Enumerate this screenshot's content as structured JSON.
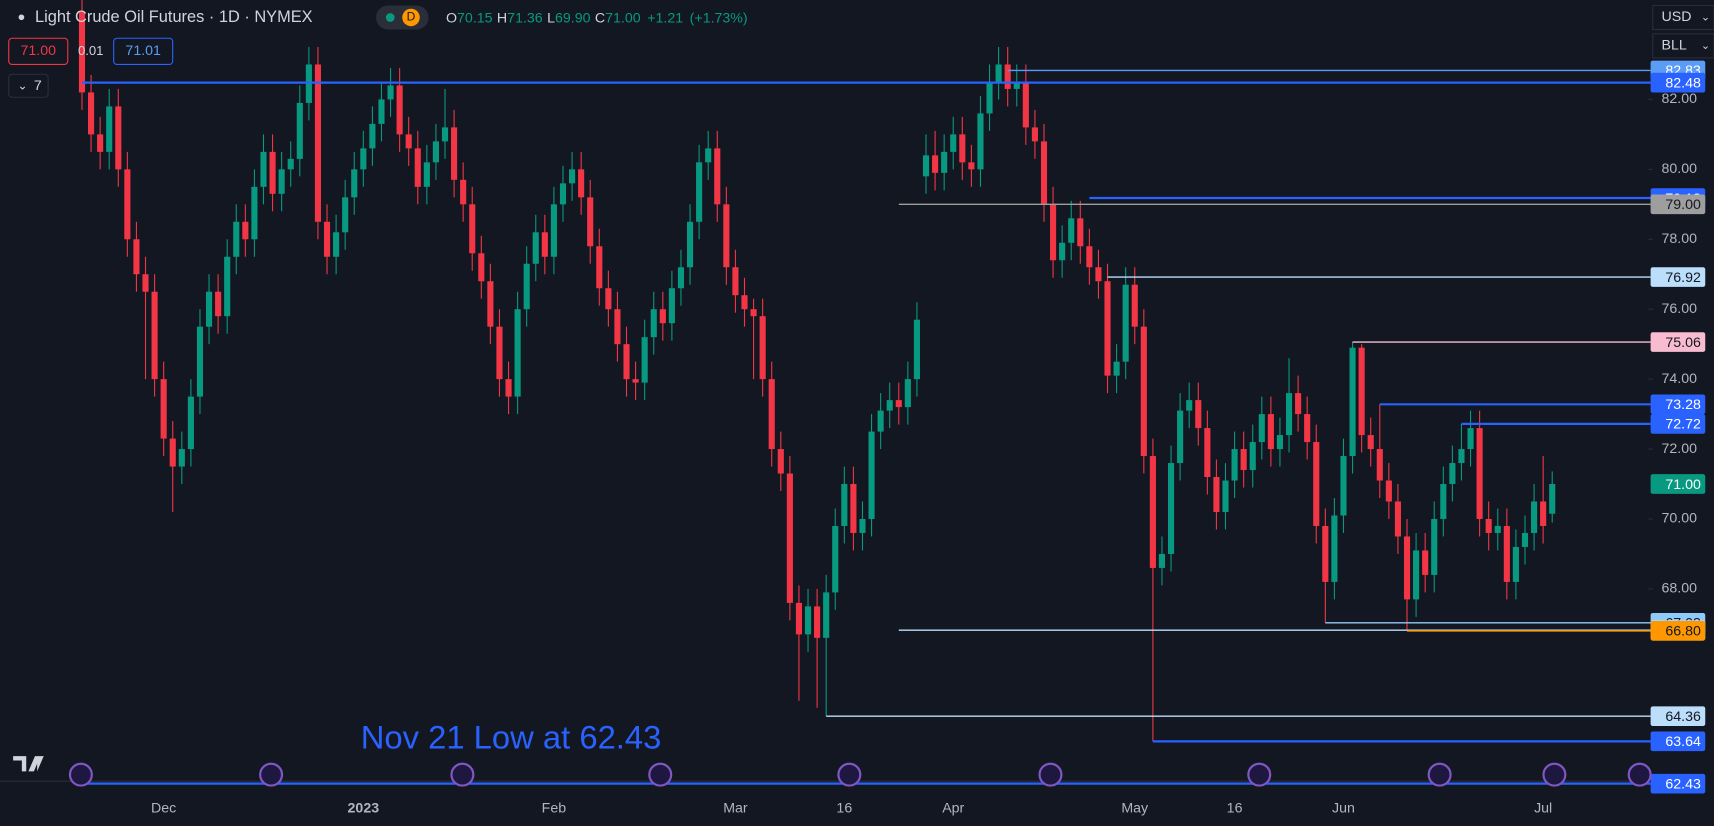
{
  "header": {
    "title": "Light Crude Oil Futures · 1D · NYMEX",
    "badge": "D",
    "open_key": "O",
    "open": "70.15",
    "high_key": "H",
    "high": "71.36",
    "low_key": "L",
    "low": "69.90",
    "close_key": "C",
    "close": "71.00",
    "change": "+1.21",
    "change_pct": "(+1.73%)"
  },
  "toolbar": {
    "sell": "71.00",
    "spread": "0.01",
    "buy": "71.01",
    "count": "7",
    "currency": "USD",
    "unit": "BLL"
  },
  "chart_data": {
    "type": "candlestick",
    "up_color": "#089981",
    "down_color": "#f23645",
    "annotation": "Nov 21 Low at 62.43",
    "ylim": [
      62,
      85
    ],
    "yticks": [
      {
        "value": 68,
        "label": "68.00"
      },
      {
        "value": 70,
        "label": "70.00"
      },
      {
        "value": 72,
        "label": "72.00"
      },
      {
        "value": 74,
        "label": "74.00"
      },
      {
        "value": 76,
        "label": "76.00"
      },
      {
        "value": 78,
        "label": "78.00"
      },
      {
        "value": 80,
        "label": "80.00"
      },
      {
        "value": 82,
        "label": "82.00"
      }
    ],
    "x_labels": [
      {
        "index": 9,
        "label": "Dec"
      },
      {
        "index": 31,
        "label": "2023"
      },
      {
        "index": 52,
        "label": "Feb"
      },
      {
        "index": 72,
        "label": "Mar"
      },
      {
        "index": 84,
        "label": "16"
      },
      {
        "index": 96,
        "label": "Apr"
      },
      {
        "index": 116,
        "label": "May"
      },
      {
        "index": 127,
        "label": "16"
      },
      {
        "index": 139,
        "label": "Jun"
      },
      {
        "index": 161,
        "label": "Jul"
      }
    ],
    "candles": {
      "open": [
        84.5,
        82.2,
        81.0,
        80.5,
        81.8,
        80.0,
        78.0,
        77.0,
        76.5,
        74.0,
        72.3,
        71.5,
        72.0,
        73.5,
        75.5,
        76.5,
        75.8,
        77.5,
        78.5,
        78.0,
        79.5,
        80.5,
        79.3,
        80.0,
        80.3,
        81.9,
        83.0,
        78.5,
        77.5,
        78.2,
        79.2,
        80.0,
        80.6,
        81.3,
        82.0,
        82.4,
        81.0,
        80.6,
        79.5,
        80.2,
        80.8,
        81.2,
        79.7,
        79.0,
        77.6,
        76.8,
        75.5,
        74.0,
        73.5,
        76.0,
        77.3,
        78.2,
        77.5,
        79.0,
        79.6,
        80.0,
        79.2,
        77.8,
        76.6,
        76.0,
        75.0,
        74.0,
        73.9,
        75.2,
        76.0,
        75.6,
        76.6,
        77.2,
        78.5,
        80.2,
        80.6,
        79.0,
        77.2,
        76.4,
        76.0,
        75.8,
        74.0,
        72.0,
        71.3,
        67.6,
        66.7,
        67.5,
        66.6,
        67.9,
        69.8,
        71.0,
        69.6,
        70.0,
        72.5,
        73.1,
        73.4,
        73.2,
        74.0,
        79.8,
        80.4,
        79.9,
        80.5,
        81.0,
        80.2,
        80.0,
        81.6,
        82.5,
        83.0,
        82.3,
        82.5,
        81.2,
        80.8,
        79.0,
        77.4,
        77.9,
        78.6,
        77.8,
        77.2,
        76.8,
        74.1,
        74.5,
        76.7,
        75.5,
        71.8,
        68.6,
        69.0,
        71.6,
        73.1,
        73.4,
        72.6,
        71.2,
        70.2,
        71.1,
        72.0,
        71.4,
        72.2,
        73.0,
        72.0,
        72.4,
        73.6,
        73.0,
        72.2,
        69.8,
        68.2,
        70.1,
        71.8,
        74.9,
        72.4,
        72.0,
        71.1,
        70.5,
        69.5,
        67.7,
        69.1,
        68.4,
        70.0,
        71.0,
        71.6,
        72.0,
        72.6,
        70.0,
        69.6,
        69.8,
        68.2,
        69.2,
        69.6,
        70.5,
        70.15
      ],
      "high": [
        85.0,
        82.7,
        81.5,
        82.3,
        82.3,
        80.5,
        78.5,
        77.5,
        77.0,
        74.5,
        72.8,
        72.5,
        74.0,
        76.0,
        77.0,
        77.0,
        78.0,
        79.0,
        79.0,
        80.0,
        81.0,
        81.0,
        80.5,
        80.8,
        82.4,
        83.5,
        83.5,
        79.0,
        78.7,
        79.7,
        80.5,
        81.1,
        81.8,
        82.5,
        82.9,
        82.9,
        81.5,
        81.1,
        80.7,
        81.3,
        82.3,
        81.7,
        80.2,
        79.5,
        78.1,
        77.3,
        76.0,
        74.5,
        76.5,
        77.8,
        78.7,
        78.7,
        79.5,
        80.1,
        80.5,
        80.5,
        79.7,
        78.3,
        77.1,
        76.5,
        75.5,
        74.5,
        75.7,
        76.5,
        76.5,
        77.1,
        77.7,
        79.0,
        80.7,
        81.1,
        81.1,
        79.5,
        77.7,
        76.9,
        76.3,
        76.3,
        74.5,
        72.5,
        71.8,
        68.1,
        68.0,
        68.0,
        68.4,
        70.3,
        71.5,
        71.5,
        70.5,
        73.0,
        73.6,
        73.9,
        73.9,
        74.5,
        76.2,
        81.0,
        81.1,
        81.0,
        81.5,
        81.5,
        80.7,
        82.1,
        83.0,
        83.5,
        83.5,
        83.0,
        83.0,
        81.7,
        81.3,
        79.5,
        78.4,
        79.1,
        79.1,
        78.3,
        77.7,
        77.3,
        75.0,
        77.2,
        77.2,
        76.0,
        72.3,
        69.5,
        72.1,
        73.6,
        73.9,
        73.9,
        73.1,
        71.7,
        71.6,
        72.5,
        72.5,
        72.7,
        73.5,
        73.5,
        72.9,
        74.6,
        74.1,
        73.5,
        72.7,
        70.3,
        70.6,
        72.3,
        75.06,
        75.0,
        72.9,
        73.28,
        71.6,
        71.0,
        70.0,
        69.6,
        69.6,
        70.5,
        71.5,
        72.1,
        72.72,
        73.1,
        73.1,
        70.5,
        70.3,
        70.3,
        69.7,
        70.1,
        71.0,
        71.8,
        71.36
      ],
      "low": [
        81.7,
        80.5,
        80.0,
        80.0,
        79.5,
        77.5,
        76.5,
        74.0,
        73.5,
        71.8,
        70.2,
        71.0,
        71.5,
        73.0,
        75.0,
        75.3,
        75.3,
        77.0,
        77.5,
        77.5,
        79.0,
        78.8,
        78.8,
        79.5,
        79.8,
        81.4,
        78.0,
        77.0,
        77.0,
        77.7,
        78.7,
        79.5,
        80.1,
        80.8,
        81.5,
        80.5,
        80.1,
        79.0,
        79.0,
        79.7,
        80.3,
        79.2,
        78.5,
        77.1,
        76.3,
        75.0,
        73.5,
        73.0,
        73.0,
        75.5,
        76.8,
        77.0,
        77.0,
        78.5,
        79.1,
        78.7,
        77.3,
        76.1,
        75.5,
        74.5,
        73.5,
        73.4,
        73.4,
        74.7,
        75.1,
        75.1,
        76.1,
        76.7,
        78.0,
        79.7,
        78.5,
        76.7,
        75.9,
        75.5,
        74.0,
        73.5,
        71.5,
        70.8,
        67.1,
        64.8,
        66.2,
        64.6,
        64.36,
        67.4,
        69.3,
        69.1,
        69.1,
        69.5,
        72.0,
        72.6,
        72.7,
        72.7,
        73.5,
        79.3,
        79.4,
        79.4,
        80.0,
        79.7,
        79.5,
        79.5,
        81.1,
        82.0,
        81.8,
        81.8,
        80.7,
        80.3,
        78.5,
        76.9,
        76.9,
        77.4,
        77.3,
        76.7,
        76.3,
        73.6,
        73.6,
        74.0,
        75.0,
        71.3,
        63.64,
        68.1,
        68.5,
        71.1,
        72.6,
        72.1,
        70.7,
        69.7,
        69.7,
        70.6,
        70.9,
        70.9,
        71.7,
        71.5,
        71.5,
        71.9,
        72.5,
        71.7,
        69.3,
        67.03,
        67.7,
        69.6,
        71.3,
        71.9,
        71.5,
        70.6,
        70.0,
        69.0,
        66.8,
        67.2,
        67.9,
        67.9,
        69.5,
        70.5,
        71.1,
        71.5,
        69.5,
        69.1,
        69.1,
        67.7,
        67.7,
        68.7,
        69.1,
        69.3,
        69.9
      ],
      "close": [
        82.2,
        81.0,
        80.5,
        81.8,
        80.0,
        78.0,
        77.0,
        76.5,
        74.0,
        72.3,
        71.5,
        72.0,
        73.5,
        75.5,
        76.5,
        75.8,
        77.5,
        78.5,
        78.0,
        79.5,
        80.5,
        79.3,
        80.0,
        80.3,
        81.9,
        83.0,
        78.5,
        77.5,
        78.2,
        79.2,
        80.0,
        80.6,
        81.3,
        82.0,
        82.4,
        81.0,
        80.6,
        79.5,
        80.2,
        80.8,
        81.2,
        79.7,
        79.0,
        77.6,
        76.8,
        75.5,
        74.0,
        73.5,
        76.0,
        77.3,
        78.2,
        77.5,
        79.0,
        79.6,
        80.0,
        79.2,
        77.8,
        76.6,
        76.0,
        75.0,
        74.0,
        73.9,
        75.2,
        76.0,
        75.6,
        76.6,
        77.2,
        78.5,
        80.2,
        80.6,
        79.0,
        77.2,
        76.4,
        76.0,
        75.8,
        74.0,
        72.0,
        71.3,
        67.6,
        66.7,
        67.5,
        66.6,
        67.9,
        69.8,
        71.0,
        69.6,
        70.0,
        72.5,
        73.1,
        73.4,
        73.2,
        74.0,
        75.7,
        80.4,
        79.9,
        80.5,
        81.0,
        80.2,
        80.0,
        81.6,
        82.5,
        83.0,
        82.3,
        82.5,
        81.2,
        80.8,
        79.0,
        77.4,
        77.9,
        78.6,
        77.8,
        77.2,
        76.8,
        74.1,
        74.5,
        76.7,
        75.5,
        71.8,
        68.6,
        69.0,
        71.6,
        73.1,
        73.4,
        72.6,
        71.2,
        70.2,
        71.1,
        72.0,
        71.4,
        72.2,
        73.0,
        72.0,
        72.4,
        73.6,
        73.0,
        72.2,
        69.8,
        68.2,
        70.1,
        71.8,
        74.9,
        72.4,
        72.0,
        71.1,
        70.5,
        69.5,
        67.7,
        69.1,
        68.4,
        70.0,
        71.0,
        71.6,
        72.0,
        72.6,
        70.0,
        69.6,
        69.8,
        68.2,
        69.2,
        69.6,
        70.5,
        69.8,
        71.0
      ]
    },
    "levels": [
      {
        "price": 82.83,
        "from": 102,
        "color": "#5b9cf6",
        "text_color": "#ffffff"
      },
      {
        "price": 82.48,
        "from": 0,
        "color": "#2962ff",
        "text_color": "#ffffff"
      },
      {
        "price": 79.18,
        "from": 111,
        "color": "#2962ff",
        "text_color": "#ffffff"
      },
      {
        "price": 79,
        "label": "79.00",
        "from": 90,
        "color": "#9e9e9e",
        "text_color": "#131722"
      },
      {
        "price": 76.92,
        "from": 113,
        "color": "#bbdefb",
        "text_color": "#131722"
      },
      {
        "price": 75.06,
        "from": 140,
        "color": "#f8bbd0",
        "text_color": "#131722"
      },
      {
        "price": 73.28,
        "from": 143,
        "color": "#2962ff",
        "text_color": "#ffffff"
      },
      {
        "price": 72.72,
        "from": 152,
        "color": "#2962ff",
        "text_color": "#ffffff"
      },
      {
        "price": 71,
        "label": "71.00",
        "color": "#089981",
        "text_color": "#ffffff"
      },
      {
        "price": 67.03,
        "from": 137,
        "color": "#90caf9",
        "text_color": "#131722"
      },
      {
        "price": 66.82,
        "from": 90,
        "color": "#bbdefb",
        "text_color": "#131722"
      },
      {
        "price": 66.8,
        "label": "66.80",
        "from": 146,
        "color": "#ff9800",
        "text_color": "#131722"
      },
      {
        "price": 64.36,
        "from": 82,
        "color": "#bbdefb",
        "text_color": "#131722"
      },
      {
        "price": 63.64,
        "from": 118,
        "color": "#2962ff",
        "text_color": "#ffffff"
      },
      {
        "price": 62.43,
        "from": 0,
        "color": "#2962ff",
        "text_color": "#ffffff"
      }
    ]
  }
}
